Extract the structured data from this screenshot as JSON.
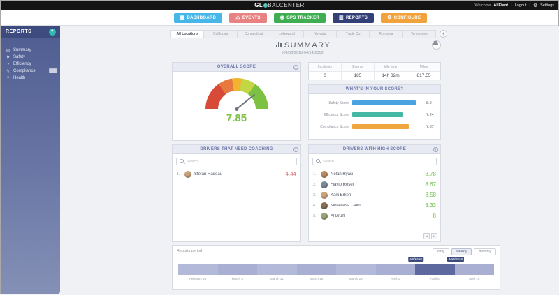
{
  "colors": {
    "accent_green": "#7dc142",
    "accent_red": "#e2706e",
    "sidebar_blue": "#4e5c90",
    "header_lavender": "#e7e9f3"
  },
  "topbar": {
    "logo_pre": "GL",
    "logo_post": "BALCENTER",
    "welcome": "Welcome",
    "user": "Al Efant",
    "logout": "Logout",
    "settings": "Settings",
    "settings_glyph": "⚙"
  },
  "nav": {
    "buttons": [
      {
        "label": "DASHBOARD",
        "glyph": "▦",
        "color": "#47b7ea"
      },
      {
        "label": "EVENTS",
        "glyph": "⚠",
        "color": "#e88282"
      },
      {
        "label": "GPS TRACKER",
        "glyph": "◉",
        "color": "#3fae52"
      },
      {
        "label": "REPORTS",
        "glyph": "▥",
        "color": "#333f77"
      },
      {
        "label": "CONFIGURE",
        "glyph": "⚙",
        "color": "#f1a23c"
      }
    ]
  },
  "sidebar": {
    "title": "REPORTS",
    "help_glyph": "?",
    "items": [
      {
        "label": "Summary",
        "glyph": "▤"
      },
      {
        "label": "Safety",
        "glyph": "⚑"
      },
      {
        "label": "Efficiency",
        "glyph": "◑"
      },
      {
        "label": "Compliance",
        "glyph": "✎"
      },
      {
        "label": "Health",
        "glyph": "♥"
      }
    ],
    "drivers_tab_label": "DRIVERS"
  },
  "tabs": {
    "items": [
      {
        "label": "All Locations"
      },
      {
        "label": "California"
      },
      {
        "label": "Connecticut"
      },
      {
        "label": "Lakewood"
      },
      {
        "label": "Nevada"
      },
      {
        "label": "Trade Co"
      },
      {
        "label": "Romania"
      },
      {
        "label": "Tennessee"
      }
    ],
    "add_glyph": "+"
  },
  "summary": {
    "title": "SUMMARY",
    "date_range": "(04/08/2018-04/14/2018)"
  },
  "overall": {
    "header": "OVERALL SCORE",
    "value": "7.85",
    "info_glyph": "i"
  },
  "stats": {
    "columns": [
      {
        "label": "Incidents",
        "value": "0"
      },
      {
        "label": "Events",
        "value": "185"
      },
      {
        "label": "Idle time",
        "value": "14h 32m"
      },
      {
        "label": "Miles",
        "value": "817.55"
      }
    ]
  },
  "breakdown": {
    "header": "WHAT'S IN YOUR SCORE?",
    "rows": [
      {
        "label": "Safety Score",
        "value": "8.9",
        "color": "#4aa3e0",
        "pct": "89"
      },
      {
        "label": "Efficiency Score",
        "value": "7.24",
        "color": "#45b8a5",
        "pct": "72"
      },
      {
        "label": "Compliance Score",
        "value": "7.87",
        "color": "#f0a63e",
        "pct": "79"
      }
    ]
  },
  "coaching": {
    "header": "DRIVERS THAT NEED COACHING",
    "search_placeholder": "Search",
    "rows": [
      {
        "rank": "1.",
        "name": "Stefan Radeau",
        "score": "4.44",
        "avatar_color": "#caa37a"
      }
    ]
  },
  "high_score": {
    "header": "DRIVERS WITH HIGH SCORE",
    "search_placeholder": "Search",
    "rows": [
      {
        "rank": "1.",
        "name": "Nolan Ryasi",
        "score": "8.78",
        "avatar_color": "#b98b5e"
      },
      {
        "rank": "2.",
        "name": "Flavio Resel",
        "score": "8.67",
        "avatar_color": "#7a8a96"
      },
      {
        "rank": "3.",
        "name": "Karli Erken",
        "score": "8.58",
        "avatar_color": "#caa37a"
      },
      {
        "rank": "4.",
        "name": "Mihaleasa Calin",
        "score": "8.33",
        "avatar_color": "#8a6f54"
      },
      {
        "rank": "5.",
        "name": "Al Bruhl",
        "score": "8",
        "avatar_color": "#9aa37a"
      }
    ],
    "pager_prev": "◂",
    "pager_next": "▸"
  },
  "period": {
    "label": "Reports period",
    "buttons": [
      {
        "label": "daily"
      },
      {
        "label": "weekly"
      },
      {
        "label": "monthly"
      }
    ],
    "start_flag": "4/8/2018",
    "end_flag": "4/14/2018",
    "selected_index": 6,
    "ticks": [
      "February 25",
      "March 4",
      "March 11",
      "March 18",
      "March 25",
      "April 1",
      "April 8",
      "April 15"
    ]
  }
}
